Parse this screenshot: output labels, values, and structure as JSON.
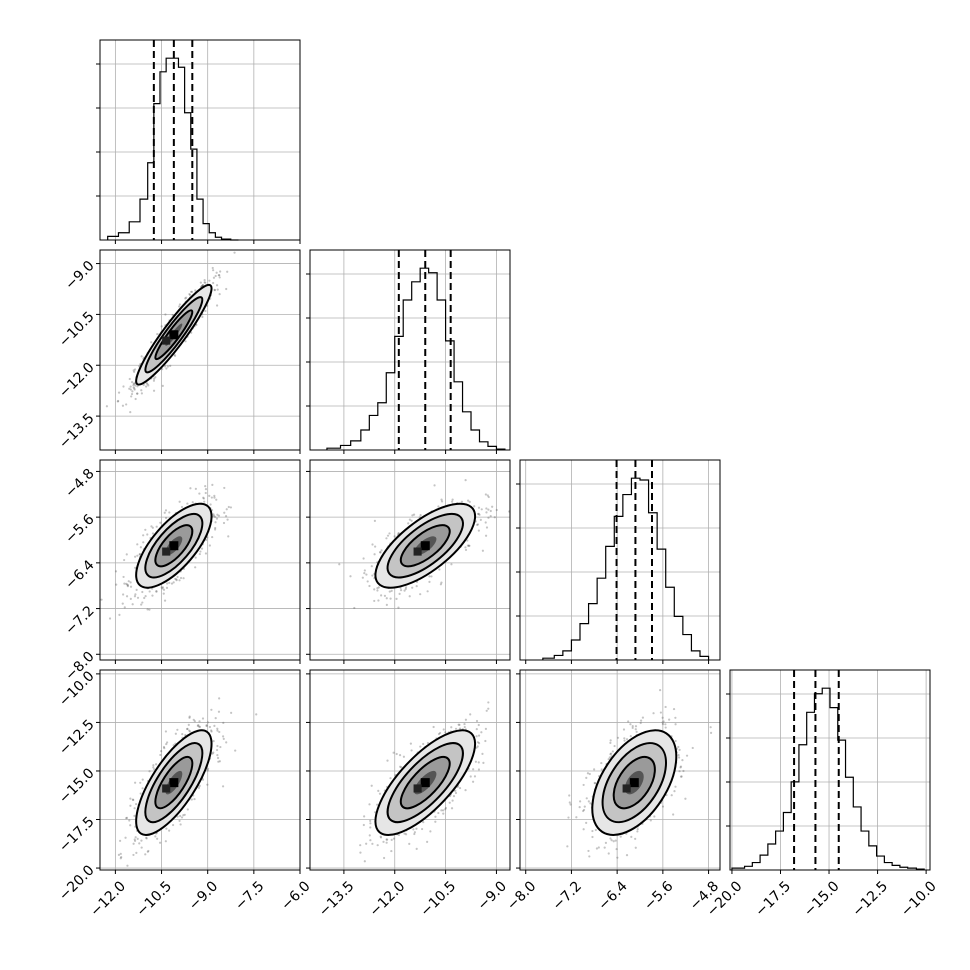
{
  "chart_data": {
    "type": "corner",
    "parameters": 4,
    "grid": true,
    "grayscale_density": true,
    "axis_ranges": [
      [
        -12.5,
        -6.0
      ],
      [
        -14.5,
        -8.6
      ],
      [
        -8.1,
        -4.6
      ],
      [
        -20.1,
        -9.8
      ]
    ],
    "axis_ticks": [
      [
        -12.0,
        -10.5,
        -9.0,
        -7.5,
        -6.0
      ],
      [
        -13.5,
        -12.0,
        -10.5,
        -9.0
      ],
      [
        -8.0,
        -7.2,
        -6.4,
        -5.6,
        -4.8
      ],
      [
        -20.0,
        -17.5,
        -15.0,
        -12.5,
        -10.0
      ]
    ],
    "axis_tick_labels": [
      [
        "−12.0",
        "−10.5",
        "−9.0",
        "−7.5",
        "−6.0"
      ],
      [
        "−13.5",
        "−12.0",
        "−10.5",
        "−9.0"
      ],
      [
        "−8.0",
        "−7.2",
        "−6.4",
        "−5.6",
        "−4.8"
      ],
      [
        "−20.0",
        "−17.5",
        "−15.0",
        "−12.5",
        "−10.0"
      ]
    ],
    "left_tick_labels": [
      null,
      [
        "−9.0",
        "−10.5",
        "−12.0",
        "−13.5"
      ],
      [
        "−4.8",
        "−5.6",
        "−6.4",
        "−7.2",
        "−8.0"
      ],
      [
        "−10.0",
        "−12.5",
        "−15.0",
        "−17.5",
        "−20.0"
      ]
    ],
    "marginals": [
      {
        "param": 0,
        "quantiles": [
          -10.75,
          -10.1,
          -9.5
        ],
        "bin_edges": [
          -12.25,
          -11.9,
          -11.55,
          -11.2,
          -10.95,
          -10.75,
          -10.55,
          -10.35,
          -10.15,
          -9.95,
          -9.75,
          -9.55,
          -9.35,
          -9.15,
          -8.95,
          -8.75,
          -8.55,
          -8.25,
          -8.0
        ],
        "counts": [
          4,
          8,
          20,
          45,
          85,
          150,
          185,
          200,
          200,
          190,
          140,
          100,
          45,
          18,
          8,
          3,
          1,
          0
        ]
      },
      {
        "param": 1,
        "quantiles": [
          -11.88,
          -11.1,
          -10.35
        ],
        "bin_edges": [
          -14.0,
          -13.6,
          -13.3,
          -13.0,
          -12.75,
          -12.5,
          -12.25,
          -12.0,
          -11.75,
          -11.5,
          -11.25,
          -11.0,
          -10.75,
          -10.5,
          -10.25,
          -10.0,
          -9.75,
          -9.5,
          -9.25,
          -9.0,
          -8.75
        ],
        "counts": [
          2,
          5,
          10,
          22,
          38,
          52,
          85,
          125,
          165,
          185,
          200,
          195,
          165,
          120,
          75,
          42,
          22,
          9,
          4,
          1
        ]
      },
      {
        "param": 2,
        "quantiles": [
          -6.41,
          -6.08,
          -5.79
        ],
        "bin_edges": [
          -7.7,
          -7.5,
          -7.35,
          -7.2,
          -7.05,
          -6.9,
          -6.75,
          -6.6,
          -6.45,
          -6.3,
          -6.15,
          -6.0,
          -5.85,
          -5.7,
          -5.55,
          -5.4,
          -5.25,
          -5.1,
          -4.95,
          -4.8
        ],
        "counts": [
          2,
          5,
          10,
          22,
          40,
          62,
          90,
          125,
          158,
          182,
          200,
          198,
          162,
          122,
          80,
          48,
          28,
          10,
          4
        ]
      },
      {
        "param": 3,
        "quantiles": [
          -16.8,
          -15.7,
          -14.5
        ],
        "bin_edges": [
          -20.0,
          -19.35,
          -18.95,
          -18.55,
          -18.15,
          -17.75,
          -17.35,
          -16.95,
          -16.55,
          -16.15,
          -15.75,
          -15.35,
          -14.95,
          -14.55,
          -14.15,
          -13.75,
          -13.35,
          -12.95,
          -12.55,
          -12.15,
          -11.75,
          -11.35,
          -10.95,
          -10.5,
          -10.1
        ],
        "counts": [
          2,
          4,
          8,
          16,
          28,
          42,
          62,
          95,
          135,
          170,
          190,
          196,
          175,
          140,
          100,
          68,
          42,
          26,
          15,
          8,
          5,
          3,
          2,
          1
        ]
      }
    ],
    "joints": [
      {
        "x_param": 0,
        "y_param": 1,
        "mean": [
          -10.1,
          -11.1
        ],
        "sd": [
          0.5,
          0.6
        ],
        "corr": 0.93
      },
      {
        "x_param": 0,
        "y_param": 2,
        "mean": [
          -10.1,
          -6.1
        ],
        "sd": [
          0.5,
          0.3
        ],
        "corr": 0.7
      },
      {
        "x_param": 1,
        "y_param": 2,
        "mean": [
          -11.1,
          -6.1
        ],
        "sd": [
          0.6,
          0.3
        ],
        "corr": 0.7
      },
      {
        "x_param": 0,
        "y_param": 3,
        "mean": [
          -10.1,
          -15.6
        ],
        "sd": [
          0.5,
          1.1
        ],
        "corr": 0.74
      },
      {
        "x_param": 1,
        "y_param": 3,
        "mean": [
          -11.1,
          -15.6
        ],
        "sd": [
          0.6,
          1.1
        ],
        "corr": 0.74
      },
      {
        "x_param": 2,
        "y_param": 3,
        "mean": [
          -6.1,
          -15.6
        ],
        "sd": [
          0.3,
          1.1
        ],
        "corr": 0.5
      }
    ]
  }
}
